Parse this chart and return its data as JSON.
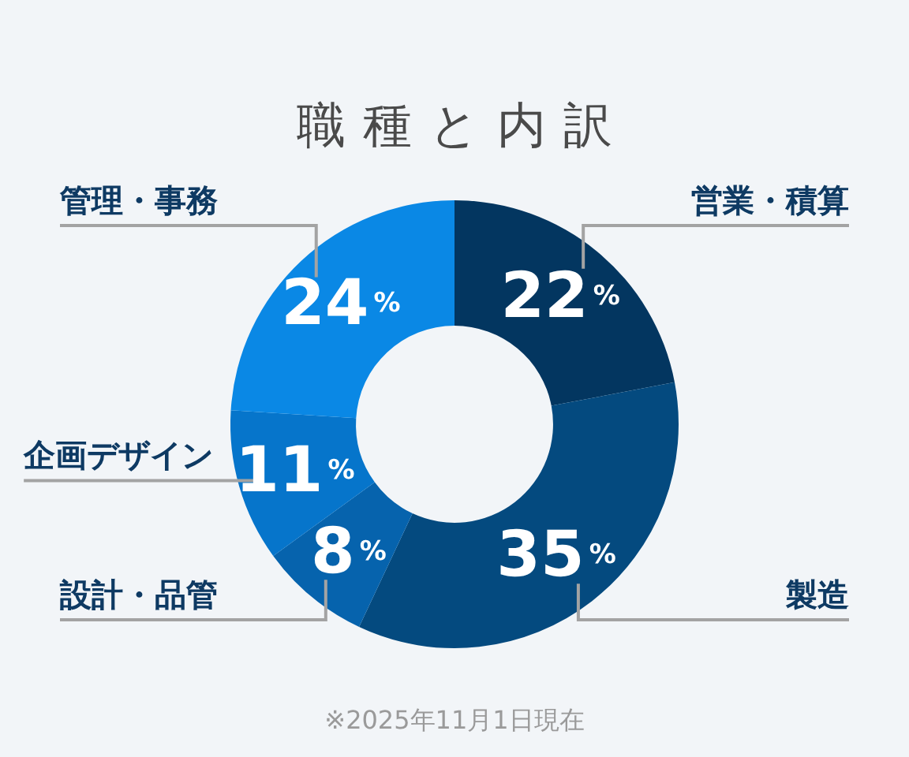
{
  "chart_data": {
    "type": "donut",
    "title": "職種と内訳",
    "categories": [
      "営業・積算",
      "製造",
      "設計・品管",
      "企画デザイン",
      "管理・事務"
    ],
    "values": [
      22,
      35,
      8,
      11,
      24
    ],
    "colors": [
      "#033660",
      "#044a7f",
      "#0663ad",
      "#0675cb",
      "#0a88e5"
    ],
    "value_labels": [
      "22%",
      "35%",
      "8%",
      "11%",
      "24%"
    ],
    "annotations": [
      "※2025年11月1日現在"
    ]
  }
}
